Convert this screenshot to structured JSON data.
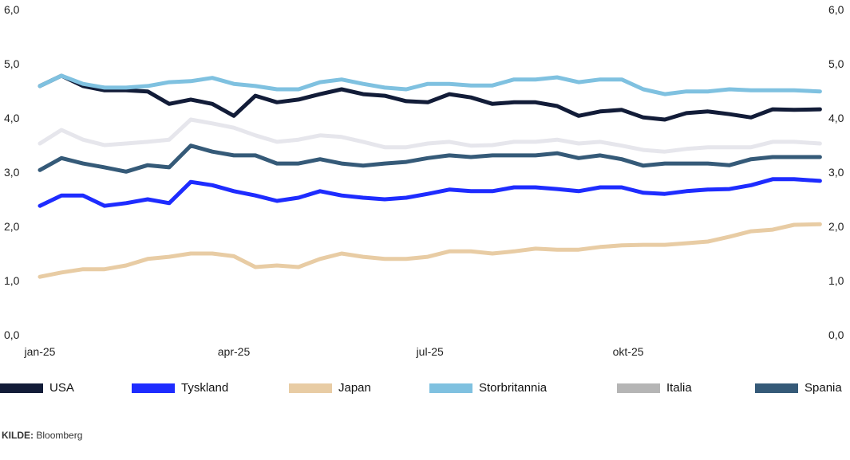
{
  "chart_data": {
    "type": "line",
    "title": "",
    "xlabel": "",
    "ylabel": "",
    "ylim": [
      0,
      6
    ],
    "yticks": [
      "0,0",
      "1,0",
      "2,0",
      "3,0",
      "4,0",
      "5,0",
      "6,0"
    ],
    "y_axes": "left and right",
    "xticks": [
      {
        "date": "2025-01-01",
        "label": "jan-25"
      },
      {
        "date": "2025-04-01",
        "label": "apr-25"
      },
      {
        "date": "2025-07-01",
        "label": "jul-25"
      },
      {
        "date": "2025-10-01",
        "label": "okt-25"
      }
    ],
    "grid": false,
    "legend": "bottom",
    "x": [
      "2025-01-01",
      "2025-01-11",
      "2025-01-21",
      "2025-01-31",
      "2025-02-10",
      "2025-02-20",
      "2025-03-02",
      "2025-03-12",
      "2025-03-22",
      "2025-04-01",
      "2025-04-11",
      "2025-04-21",
      "2025-05-01",
      "2025-05-11",
      "2025-05-21",
      "2025-05-31",
      "2025-06-10",
      "2025-06-20",
      "2025-06-30",
      "2025-07-10",
      "2025-07-20",
      "2025-07-30",
      "2025-08-09",
      "2025-08-19",
      "2025-08-29",
      "2025-09-08",
      "2025-09-18",
      "2025-09-28",
      "2025-10-08",
      "2025-10-18",
      "2025-10-28",
      "2025-11-07",
      "2025-11-17",
      "2025-11-27",
      "2025-12-07",
      "2025-12-17",
      "2025-12-29"
    ],
    "series": [
      {
        "name": "Japan",
        "color": "#e8cca4",
        "values": [
          1.07,
          1.15,
          1.21,
          1.21,
          1.28,
          1.4,
          1.44,
          1.5,
          1.5,
          1.45,
          1.25,
          1.28,
          1.25,
          1.4,
          1.5,
          1.44,
          1.4,
          1.4,
          1.44,
          1.54,
          1.54,
          1.5,
          1.54,
          1.59,
          1.57,
          1.57,
          1.62,
          1.65,
          1.66,
          1.66,
          1.69,
          1.72,
          1.81,
          1.91,
          1.94,
          2.03,
          2.04
        ]
      },
      {
        "name": "Tyskland",
        "color": "#1e2cff",
        "values": [
          2.38,
          2.57,
          2.57,
          2.38,
          2.43,
          2.5,
          2.43,
          2.82,
          2.76,
          2.65,
          2.57,
          2.47,
          2.53,
          2.65,
          2.57,
          2.53,
          2.5,
          2.53,
          2.6,
          2.68,
          2.65,
          2.65,
          2.72,
          2.72,
          2.69,
          2.65,
          2.72,
          2.72,
          2.62,
          2.6,
          2.65,
          2.68,
          2.69,
          2.76,
          2.87,
          2.87,
          2.84
        ]
      },
      {
        "name": "Spania",
        "color": "#355a78",
        "values": [
          3.04,
          3.26,
          3.16,
          3.09,
          3.01,
          3.13,
          3.09,
          3.49,
          3.38,
          3.31,
          3.31,
          3.16,
          3.16,
          3.24,
          3.16,
          3.12,
          3.16,
          3.19,
          3.26,
          3.31,
          3.28,
          3.31,
          3.31,
          3.31,
          3.35,
          3.26,
          3.31,
          3.24,
          3.12,
          3.16,
          3.16,
          3.16,
          3.13,
          3.24,
          3.28,
          3.28,
          3.28
        ]
      },
      {
        "name": "Italia",
        "color": "#b5b5b5",
        "line_color": "#e6e6ec",
        "values": [
          3.53,
          3.78,
          3.6,
          3.5,
          3.53,
          3.56,
          3.6,
          3.97,
          3.9,
          3.82,
          3.68,
          3.56,
          3.6,
          3.68,
          3.65,
          3.56,
          3.46,
          3.46,
          3.53,
          3.56,
          3.49,
          3.5,
          3.56,
          3.56,
          3.6,
          3.53,
          3.56,
          3.49,
          3.41,
          3.38,
          3.43,
          3.46,
          3.46,
          3.46,
          3.56,
          3.56,
          3.53
        ]
      },
      {
        "name": "USA",
        "color": "#121c38",
        "values": [
          4.59,
          4.78,
          4.59,
          4.51,
          4.51,
          4.49,
          4.26,
          4.34,
          4.26,
          4.04,
          4.41,
          4.29,
          4.34,
          4.44,
          4.53,
          4.44,
          4.41,
          4.31,
          4.29,
          4.44,
          4.38,
          4.26,
          4.29,
          4.29,
          4.22,
          4.04,
          4.12,
          4.15,
          4.01,
          3.97,
          4.09,
          4.12,
          4.07,
          4.01,
          4.16,
          4.15,
          4.16
        ]
      },
      {
        "name": "Storbritannia",
        "color": "#7fc1e0",
        "values": [
          4.59,
          4.78,
          4.63,
          4.56,
          4.56,
          4.59,
          4.66,
          4.68,
          4.74,
          4.63,
          4.59,
          4.53,
          4.53,
          4.66,
          4.71,
          4.63,
          4.56,
          4.53,
          4.63,
          4.63,
          4.6,
          4.6,
          4.71,
          4.71,
          4.75,
          4.66,
          4.71,
          4.71,
          4.53,
          4.44,
          4.49,
          4.49,
          4.53,
          4.51,
          4.51,
          4.51,
          4.49
        ]
      }
    ],
    "legend_order": [
      "USA",
      "Tyskland",
      "Japan",
      "Storbritannia",
      "Italia",
      "Spania"
    ]
  },
  "source": {
    "label": "KILDE:",
    "text": "Bloomberg"
  }
}
